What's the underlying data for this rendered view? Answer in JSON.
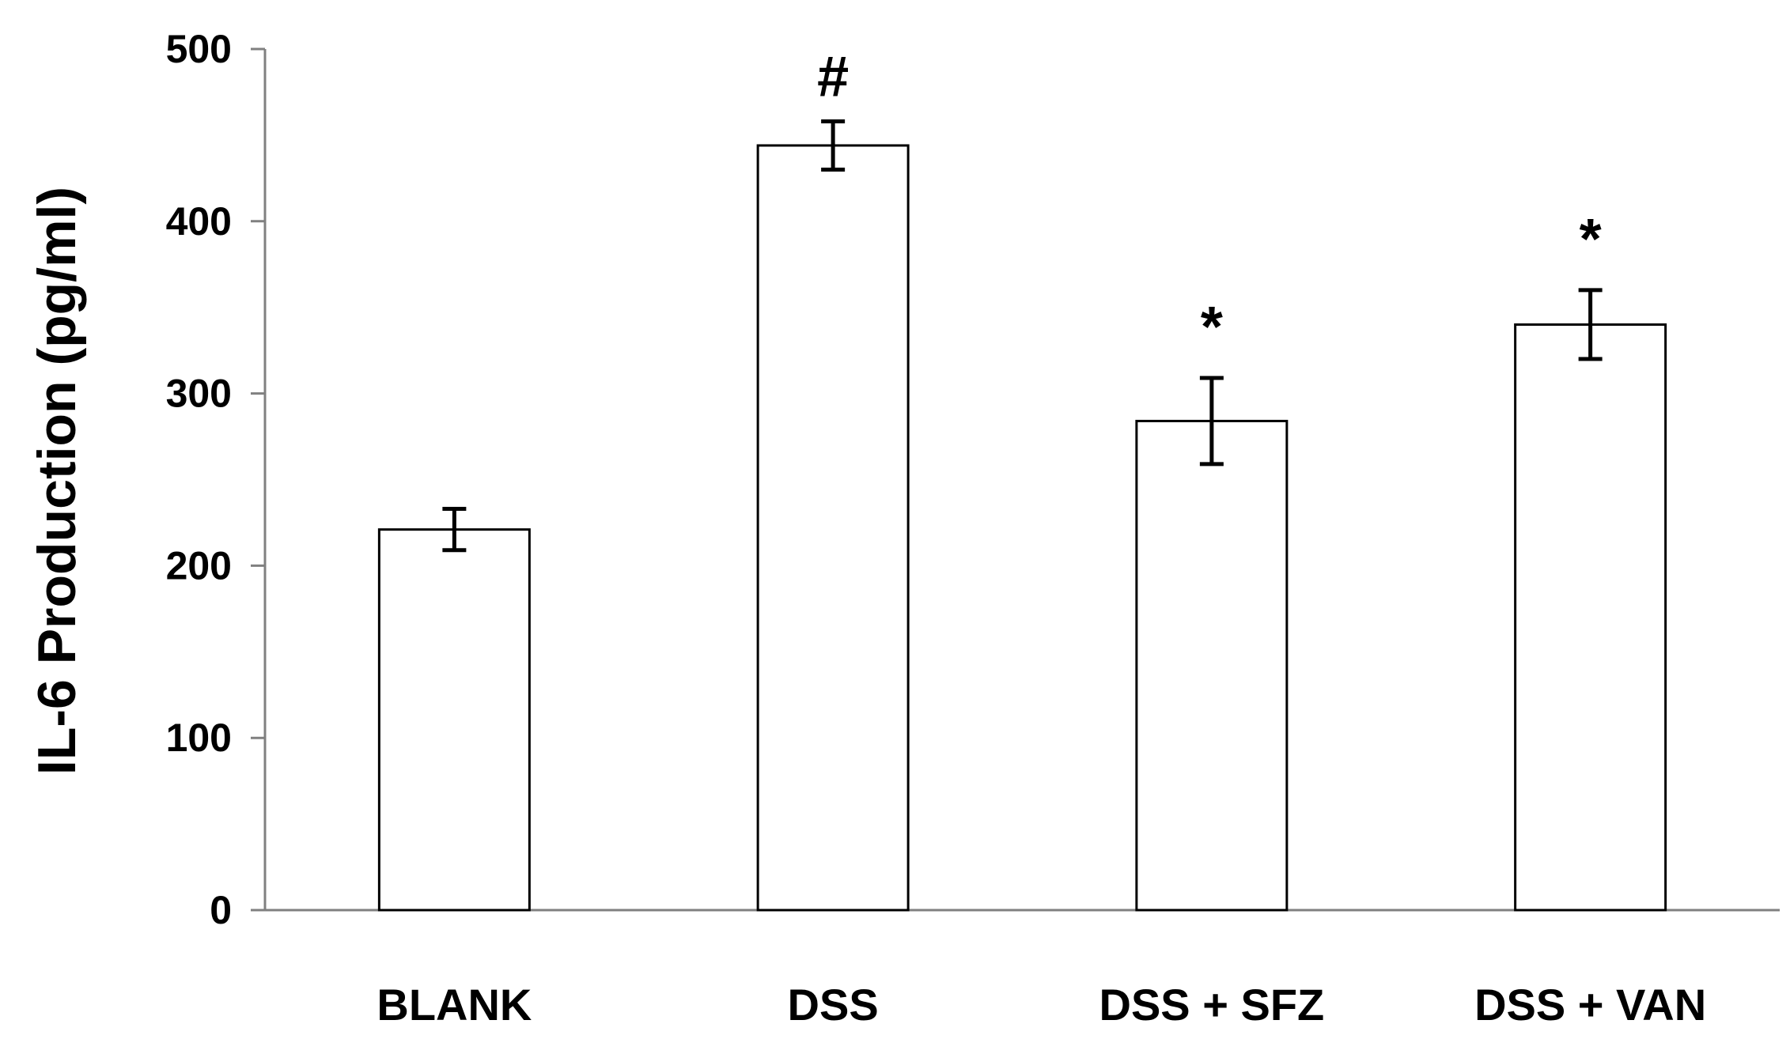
{
  "chart_data": {
    "type": "bar",
    "title": "",
    "xlabel": "",
    "ylabel": "IL-6 Production (pg/ml)",
    "ylim": [
      0,
      500
    ],
    "yticks": [
      0,
      100,
      200,
      300,
      400,
      500
    ],
    "grid": false,
    "legend": "none",
    "categories": [
      "BLANK",
      "DSS",
      "DSS + SFZ",
      "DSS + VAN"
    ],
    "values": [
      221,
      444,
      284,
      340
    ],
    "errors": [
      12,
      14,
      25,
      20
    ],
    "annotations": [
      "",
      "#",
      "*",
      "*"
    ],
    "colors": {
      "bar_fill": "#ffffff",
      "bar_stroke": "#000000",
      "axis": "#808080"
    }
  }
}
